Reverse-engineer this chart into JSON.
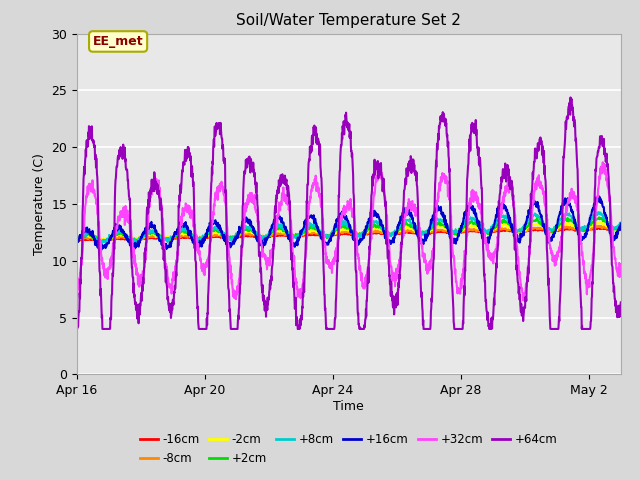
{
  "title": "Soil/Water Temperature Set 2",
  "xlabel": "Time",
  "ylabel": "Temperature (C)",
  "xlim_days": [
    0,
    17.0
  ],
  "ylim": [
    0,
    30
  ],
  "yticks": [
    0,
    5,
    10,
    15,
    20,
    25,
    30
  ],
  "xtick_labels": [
    "Apr 16",
    "Apr 20",
    "Apr 24",
    "Apr 28",
    "May 2"
  ],
  "xtick_positions": [
    0,
    4,
    8,
    12,
    16
  ],
  "outer_bg_color": "#d8d8d8",
  "plot_bg_color": "#e8e8e8",
  "annotation_text": "EE_met",
  "annotation_box_facecolor": "#ffffcc",
  "annotation_text_color": "#8b0000",
  "annotation_border_color": "#aaaa00",
  "series": {
    "-16cm": {
      "color": "#ff0000",
      "lw": 1.2
    },
    "-8cm": {
      "color": "#ff8800",
      "lw": 1.2
    },
    "-2cm": {
      "color": "#ffff00",
      "lw": 1.2
    },
    "+2cm": {
      "color": "#00dd00",
      "lw": 1.2
    },
    "+8cm": {
      "color": "#00cccc",
      "lw": 1.2
    },
    "+16cm": {
      "color": "#0000cc",
      "lw": 1.5
    },
    "+32cm": {
      "color": "#ff44ff",
      "lw": 1.5
    },
    "+64cm": {
      "color": "#9900bb",
      "lw": 1.5
    }
  },
  "legend_order": [
    "-16cm",
    "-8cm",
    "-2cm",
    "+2cm",
    "+8cm",
    "+16cm",
    "+32cm",
    "+64cm"
  ]
}
